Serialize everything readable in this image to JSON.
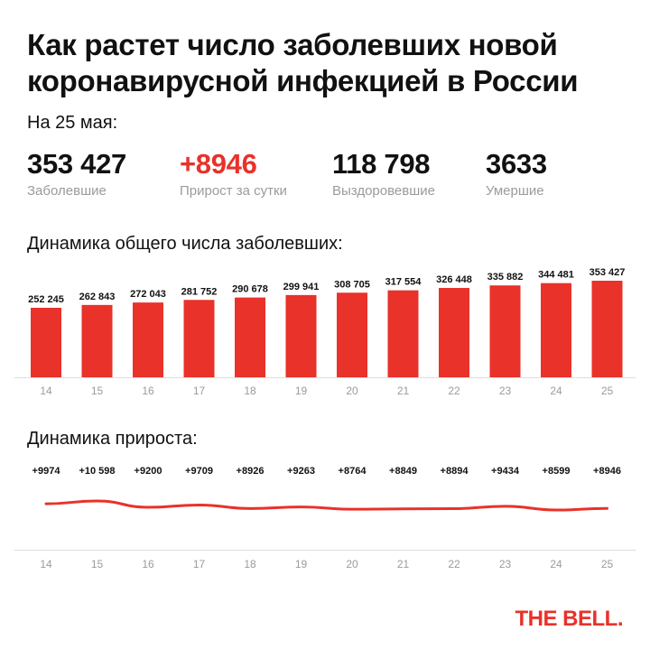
{
  "title_line1": "Как растет число заболевших новой",
  "title_line2": "коронавирусной инфекцией в России",
  "date_label": "На 25 мая:",
  "stats": [
    {
      "value": "353 427",
      "label": "Заболевшие"
    },
    {
      "value": "+8946",
      "label": "Прирост за сутки"
    },
    {
      "value": "118 798",
      "label": "Выздоровевшие"
    },
    {
      "value": "3633",
      "label": "Умершие"
    }
  ],
  "colors": {
    "accent": "#e8322a",
    "axis": "#dddddd",
    "muted": "#9b9b9b"
  },
  "brand": "THE BELL.",
  "chart_data": [
    {
      "type": "bar",
      "title": "Динамика общего числа заболевших:",
      "categories": [
        "14",
        "15",
        "16",
        "17",
        "18",
        "19",
        "20",
        "21",
        "22",
        "23",
        "24",
        "25"
      ],
      "values": [
        252245,
        262843,
        272043,
        281752,
        290678,
        299941,
        308705,
        317554,
        326448,
        335882,
        344481,
        353427
      ],
      "value_labels": [
        "252 245",
        "262 843",
        "272 043",
        "281 752",
        "290 678",
        "299 941",
        "308 705",
        "317 554",
        "326 448",
        "335 882",
        "344 481",
        "353 427"
      ]
    },
    {
      "type": "line",
      "title": "Динамика прироста:",
      "categories": [
        "14",
        "15",
        "16",
        "17",
        "18",
        "19",
        "20",
        "21",
        "22",
        "23",
        "24",
        "25"
      ],
      "values": [
        9974,
        10598,
        9200,
        9709,
        8926,
        9263,
        8764,
        8849,
        8894,
        9434,
        8599,
        8946
      ],
      "value_labels": [
        "+9974",
        "+10 598",
        "+9200",
        "+9709",
        "+8926",
        "+9263",
        "+8764",
        "+8849",
        "+8894",
        "+9434",
        "+8599",
        "+8946"
      ]
    }
  ]
}
